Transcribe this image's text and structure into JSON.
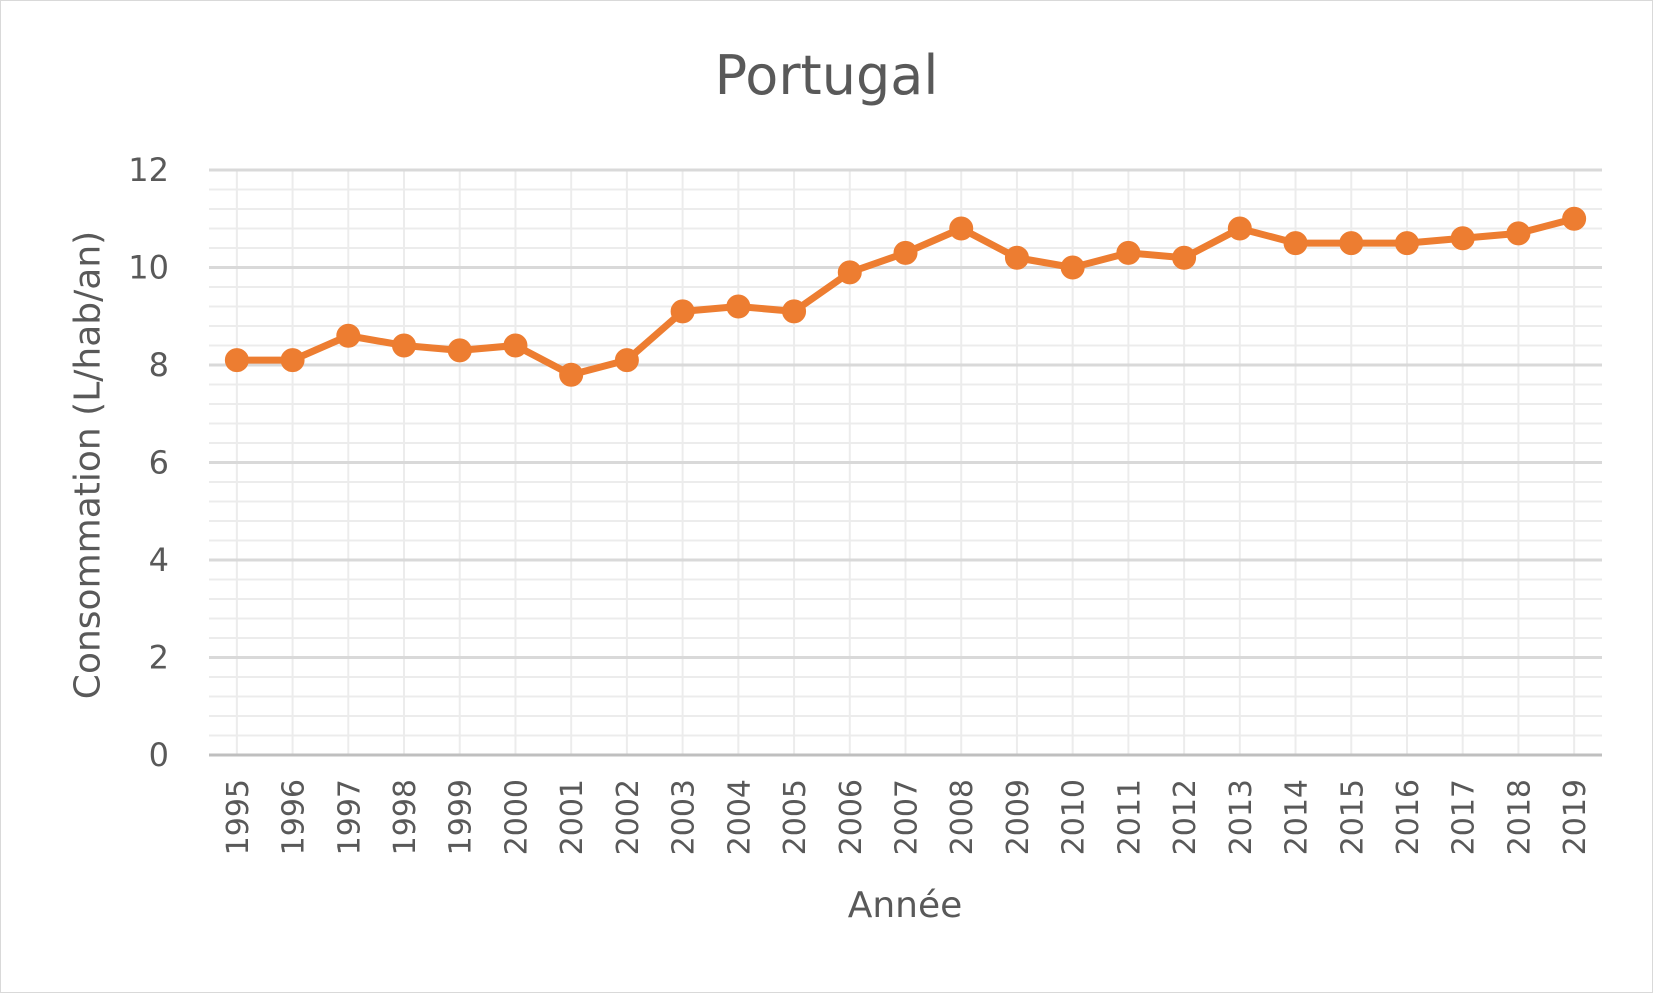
{
  "chart_data": {
    "type": "line",
    "title": "Portugal",
    "xlabel": "Année",
    "ylabel": "Consommation (L/hab/an)",
    "ylim": [
      0,
      12
    ],
    "yticks": [
      "0",
      "2",
      "4",
      "6",
      "8",
      "10",
      "12"
    ],
    "grid": true,
    "legend": "none",
    "colors": {
      "line": "#ED7D31",
      "grid_major": "#d9d9d9",
      "grid_minor": "#ececec",
      "axis": "#bfbfbf",
      "text": "#595959"
    },
    "categories": [
      "1995",
      "1996",
      "1997",
      "1998",
      "1999",
      "2000",
      "2001",
      "2002",
      "2003",
      "2004",
      "2005",
      "2006",
      "2007",
      "2008",
      "2009",
      "2010",
      "2011",
      "2012",
      "2013",
      "2014",
      "2015",
      "2016",
      "2017",
      "2018",
      "2019"
    ],
    "series": [
      {
        "values": [
          8.1,
          8.1,
          8.6,
          8.4,
          8.3,
          8.4,
          7.8,
          8.1,
          9.1,
          9.2,
          9.1,
          9.9,
          10.3,
          10.8,
          10.2,
          10.0,
          10.3,
          10.2,
          10.8,
          10.5,
          10.5,
          10.5,
          10.6,
          10.7,
          11.0
        ]
      }
    ]
  }
}
